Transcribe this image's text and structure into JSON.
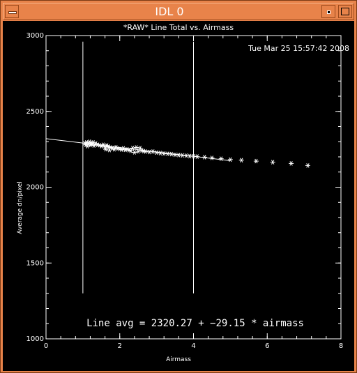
{
  "window": {
    "title": "IDL 0"
  },
  "colors": {
    "titlebar": "#e8834a",
    "plot_background": "#000000",
    "foreground": "#ffffff"
  },
  "chart_data": {
    "type": "scatter",
    "title": "*RAW* Line Total vs. Airmass",
    "xlabel": "Airmass",
    "ylabel": "Average dn/pixel",
    "xlim": [
      0,
      8
    ],
    "ylim": [
      1000,
      3000
    ],
    "x_ticks": [
      0,
      2,
      4,
      6,
      8
    ],
    "y_ticks": [
      1000,
      1500,
      2000,
      2500,
      3000
    ],
    "grid": false,
    "timestamp": "Tue Mar 25 15:57:42 2008",
    "annotation": "Line avg = 2320.27 + −29.15 * airmass",
    "vertical_lines_x": [
      1.0,
      4.0
    ],
    "fit": {
      "intercept": 2320.27,
      "slope": -29.15,
      "x_range": [
        0,
        5.0
      ]
    },
    "series": [
      {
        "marker": "asterisk",
        "points": [
          [
            1.05,
            2290
          ],
          [
            1.08,
            2280
          ],
          [
            1.1,
            2295
          ],
          [
            1.12,
            2270
          ],
          [
            1.15,
            2285
          ],
          [
            1.18,
            2300
          ],
          [
            1.2,
            2278
          ],
          [
            1.22,
            2290
          ],
          [
            1.25,
            2283
          ],
          [
            1.28,
            2295
          ],
          [
            1.3,
            2275
          ],
          [
            1.35,
            2288
          ],
          [
            1.4,
            2280
          ],
          [
            1.45,
            2277
          ],
          [
            1.5,
            2270
          ],
          [
            1.55,
            2280
          ],
          [
            1.6,
            2265
          ],
          [
            1.62,
            2250
          ],
          [
            1.65,
            2275
          ],
          [
            1.7,
            2268
          ],
          [
            1.72,
            2245
          ],
          [
            1.75,
            2262
          ],
          [
            1.8,
            2258
          ],
          [
            1.85,
            2250
          ],
          [
            1.9,
            2263
          ],
          [
            1.95,
            2255
          ],
          [
            2.0,
            2252
          ],
          [
            2.05,
            2248
          ],
          [
            2.1,
            2256
          ],
          [
            2.15,
            2246
          ],
          [
            2.2,
            2250
          ],
          [
            2.25,
            2244
          ],
          [
            2.3,
            2240
          ],
          [
            2.35,
            2258
          ],
          [
            2.4,
            2230
          ],
          [
            2.45,
            2262
          ],
          [
            2.5,
            2236
          ],
          [
            2.55,
            2258
          ],
          [
            2.6,
            2242
          ],
          [
            2.65,
            2238
          ],
          [
            2.7,
            2235
          ],
          [
            2.8,
            2232
          ],
          [
            2.9,
            2235
          ],
          [
            3.0,
            2228
          ],
          [
            3.1,
            2225
          ],
          [
            3.2,
            2222
          ],
          [
            3.3,
            2220
          ],
          [
            3.4,
            2218
          ],
          [
            3.5,
            2214
          ],
          [
            3.6,
            2212
          ],
          [
            3.7,
            2210
          ],
          [
            3.8,
            2208
          ],
          [
            3.9,
            2205
          ],
          [
            4.0,
            2204
          ],
          [
            4.1,
            2202
          ],
          [
            4.3,
            2198
          ],
          [
            4.5,
            2193
          ],
          [
            4.75,
            2188
          ],
          [
            5.0,
            2182
          ],
          [
            5.3,
            2178
          ],
          [
            5.7,
            2172
          ],
          [
            6.15,
            2165
          ],
          [
            6.65,
            2157
          ],
          [
            7.1,
            2143
          ]
        ]
      }
    ]
  }
}
